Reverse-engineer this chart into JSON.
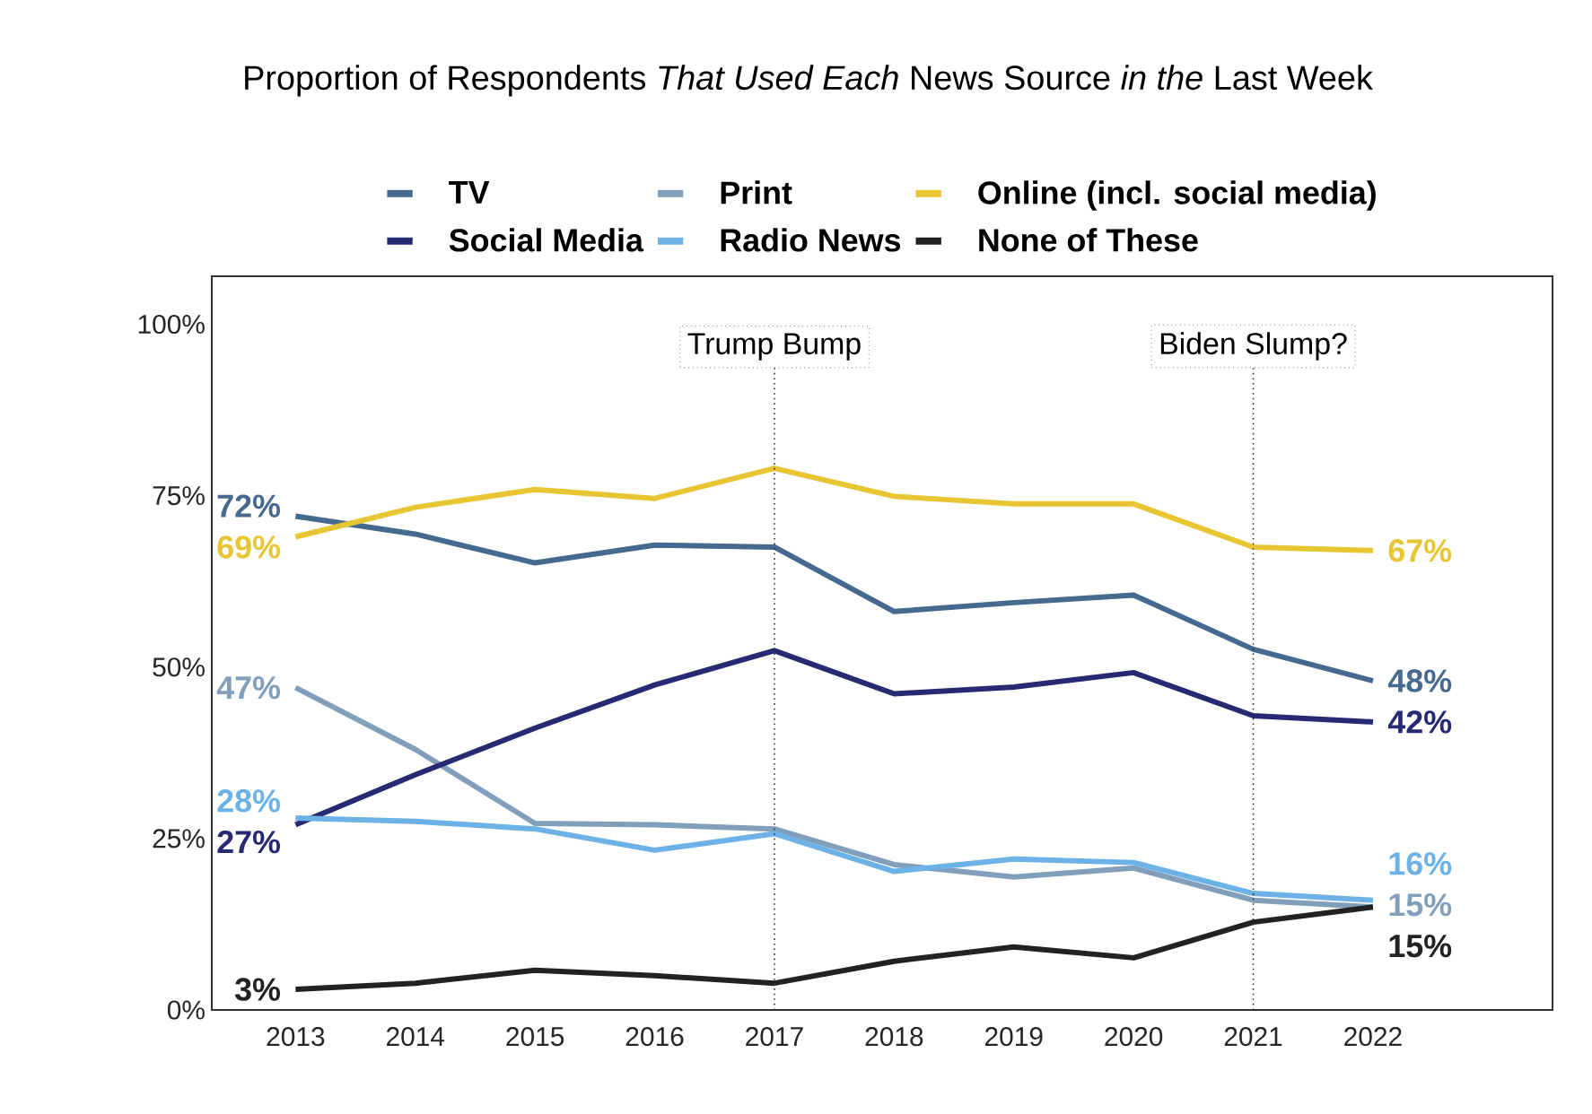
{
  "chart_data": {
    "type": "line",
    "title": "Proportion of Respondents *That Used Each* News Source *in the* Last Week",
    "x": [
      2013,
      2014,
      2015,
      2016,
      2017,
      2018,
      2019,
      2020,
      2021,
      2022
    ],
    "xlim": [
      2012.3,
      2023.5
    ],
    "xticks": [
      2013,
      2014,
      2015,
      2016,
      2017,
      2018,
      2019,
      2020,
      2021,
      2022
    ],
    "ylim": [
      0,
      107
    ],
    "yticks": [
      {
        "value": 0,
        "label": "0%"
      },
      {
        "value": 25,
        "label": "25%"
      },
      {
        "value": 50,
        "label": "50%"
      },
      {
        "value": 75,
        "label": "75%"
      },
      {
        "value": 100,
        "label": "100%"
      }
    ],
    "series": [
      {
        "name": "TV",
        "color": "#46698f",
        "values": [
          72,
          69.4,
          65.2,
          67.8,
          67.5,
          58.1,
          59.4,
          60.5,
          52.6,
          48
        ],
        "value_labels": [
          "72%",
          null,
          null,
          null,
          null,
          null,
          null,
          null,
          null,
          "48%"
        ]
      },
      {
        "name": "Print",
        "color": "#819fba",
        "values": [
          47,
          38,
          27.2,
          27,
          26.4,
          21.2,
          19.4,
          20.7,
          16,
          15
        ],
        "value_labels": [
          "47%",
          null,
          null,
          null,
          null,
          null,
          null,
          null,
          null,
          "15%"
        ]
      },
      {
        "name": "Online (incl. social media)",
        "color": "#e8c532",
        "values": [
          69,
          73.3,
          75.9,
          74.6,
          79,
          74.9,
          73.8,
          73.8,
          67.5,
          67
        ],
        "value_labels": [
          "69%",
          null,
          null,
          null,
          null,
          null,
          null,
          null,
          null,
          "67%"
        ]
      },
      {
        "name": "Social Media",
        "color": "#262a72",
        "values": [
          27,
          34.3,
          41.1,
          47.4,
          52.4,
          46.1,
          47.1,
          49.2,
          42.9,
          42
        ],
        "value_labels": [
          "27%",
          null,
          null,
          null,
          null,
          null,
          null,
          null,
          null,
          "42%"
        ]
      },
      {
        "name": "Radio News",
        "color": "#6cb2e6",
        "values": [
          28,
          27.5,
          26.4,
          23.3,
          25.7,
          20.2,
          22,
          21.5,
          17,
          16
        ],
        "value_labels": [
          "28%",
          null,
          null,
          null,
          null,
          null,
          null,
          null,
          null,
          "16%"
        ]
      },
      {
        "name": "None of These",
        "color": "#222222",
        "values": [
          3,
          3.9,
          5.8,
          5,
          3.9,
          7.1,
          9.2,
          7.6,
          12.8,
          15
        ],
        "value_labels": [
          "3%",
          null,
          null,
          null,
          null,
          null,
          null,
          null,
          null,
          "15%"
        ]
      }
    ],
    "ref_lines": [
      {
        "axis": "x",
        "value": 2017,
        "label": "Trump Bump",
        "line_style": "dotted"
      },
      {
        "axis": "x",
        "value": 2021,
        "label": "Biden Slump?",
        "line_style": "dotted"
      }
    ],
    "legend": "top",
    "grid": false,
    "marker": "none",
    "line_style": "solid"
  }
}
